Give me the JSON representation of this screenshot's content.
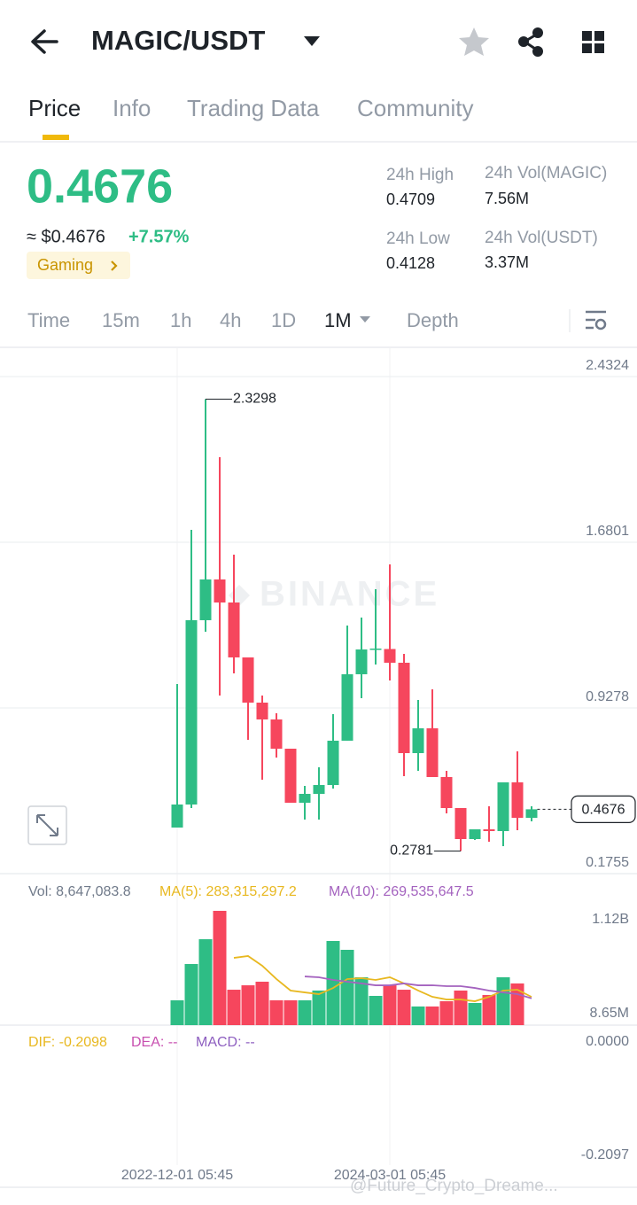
{
  "header": {
    "title": "MAGIC/USDT"
  },
  "tabs": [
    "Price",
    "Info",
    "Trading Data",
    "Community"
  ],
  "price": {
    "last": "0.4676",
    "fiat": "≈ $0.4676",
    "change": "+7.57%",
    "tag": "Gaming"
  },
  "stats": [
    {
      "label": "24h High",
      "value": "0.4709"
    },
    {
      "label": "24h Vol(MAGIC)",
      "value": "7.56M"
    },
    {
      "label": "24h Low",
      "value": "0.4128"
    },
    {
      "label": "24h Vol(USDT)",
      "value": "3.37M"
    }
  ],
  "intervals": [
    "Time",
    "15m",
    "1h",
    "4h",
    "1D",
    "1M",
    "Depth"
  ],
  "watermark": "BINANCE",
  "credit": "@Future_Crypto_Dreame...",
  "chart_data": [
    {
      "type": "candlestick",
      "categories": [
        "2022-12-01 05:45",
        null,
        null,
        null,
        null,
        null,
        null,
        null,
        null,
        null,
        null,
        null,
        null,
        null,
        null,
        "2024-03-01 05:45",
        null,
        null,
        null,
        null,
        null,
        null,
        null,
        null,
        null,
        null
      ],
      "open": [
        0.3847,
        0.4893,
        1.3261,
        1.5111,
        1.4065,
        1.1571,
        0.9519,
        0.8755,
        0.7427,
        0.4973,
        0.5376,
        0.5778,
        0.779,
        1.0807,
        1.1933,
        1.1953,
        1.133,
        0.7226,
        0.8353,
        0.614,
        0.4732,
        0.3324,
        0.3767,
        0.3686,
        0.5899,
        0.4289
      ],
      "high": [
        1.0364,
        1.7364,
        2.3298,
        2.0663,
        1.6238,
        1.1571,
        0.9841,
        0.9037,
        0.7427,
        0.5738,
        0.6583,
        0.8996,
        1.3019,
        1.3381,
        1.4669,
        1.5795,
        1.1732,
        0.964,
        1.0123,
        0.6422,
        0.4732,
        0.3767,
        0.4812,
        0.5899,
        0.7307,
        0.4812
      ],
      "low": [
        0.3847,
        0.4732,
        1.2738,
        0.9841,
        1.0847,
        0.783,
        0.6019,
        0.7025,
        0.4973,
        0.4209,
        0.4209,
        0.5617,
        0.779,
        0.9721,
        1.1249,
        1.0525,
        0.618,
        0.6422,
        0.614,
        0.4491,
        0.2781,
        0.3284,
        0.3203,
        0.3002,
        0.3726,
        0.4128
      ],
      "close": [
        0.4893,
        1.3261,
        1.5111,
        1.4065,
        1.1571,
        0.9519,
        0.8755,
        0.7427,
        0.4973,
        0.5376,
        0.5778,
        0.779,
        1.0807,
        1.1933,
        1.1973,
        1.133,
        0.7226,
        0.8353,
        0.614,
        0.4732,
        0.3324,
        0.3767,
        0.3686,
        0.5899,
        0.4289,
        0.4676
      ],
      "up_color": "#2ebd85",
      "down_color": "#f6465d",
      "ylim": [
        0.1755,
        2.561
      ],
      "yticks": [
        0.1755,
        0.9278,
        1.6801,
        2.4324
      ],
      "grid": true,
      "max_label": 2.3298,
      "min_label": 0.2781,
      "last_label": 0.4676
    },
    {
      "type": "bar",
      "label": "Vol: 8,647,083.8",
      "values": [
        249900000,
        603000000,
        844000000,
        1120000000,
        353000000,
        396000000,
        431000000,
        250000000,
        250000000,
        250000000,
        345000000,
        827000000,
        741000000,
        474000000,
        293000000,
        396000000,
        353000000,
        190000000,
        190000000,
        241000000,
        345000000,
        224000000,
        302000000,
        474000000,
        414000000,
        8647083.8
      ],
      "series": [
        {
          "name": "MA(5): 283,315,297.2",
          "color": "#e8b820",
          "values": [
            null,
            null,
            null,
            null,
            663000000,
            681000000,
            586000000,
            457000000,
            345000000,
            327000000,
            310000000,
            370000000,
            457000000,
            465000000,
            448000000,
            474000000,
            414000000,
            345000000,
            284000000,
            258000000,
            258000000,
            241000000,
            284000000,
            345000000,
            353000000,
            283315297.2
          ]
        },
        {
          "name": "MA(10): 269,535,647.5",
          "color": "#a463bf",
          "values": [
            null,
            null,
            null,
            null,
            null,
            null,
            null,
            null,
            null,
            482000000,
            474000000,
            448000000,
            431000000,
            414000000,
            396000000,
            396000000,
            414000000,
            396000000,
            396000000,
            388000000,
            388000000,
            370000000,
            345000000,
            327000000,
            310000000,
            269535647.5
          ]
        }
      ],
      "ylim": [
        8650000,
        1120000000
      ],
      "yticks": [
        {
          "value": 8650000,
          "label": "8.65M"
        },
        {
          "value": 1120000000,
          "label": "1.12B"
        }
      ]
    },
    {
      "type": "line",
      "legend": [
        {
          "name": "DIF: -0.2098",
          "color": "#e8b820"
        },
        {
          "name": "DEA: --",
          "color": "#c84fb0"
        },
        {
          "name": "MACD: --",
          "color": "#8e5fc0"
        }
      ],
      "ylim": [
        -0.2097,
        0
      ],
      "yticks": [
        {
          "value": 0,
          "label": "0.0000"
        },
        -0.2097
      ]
    }
  ]
}
